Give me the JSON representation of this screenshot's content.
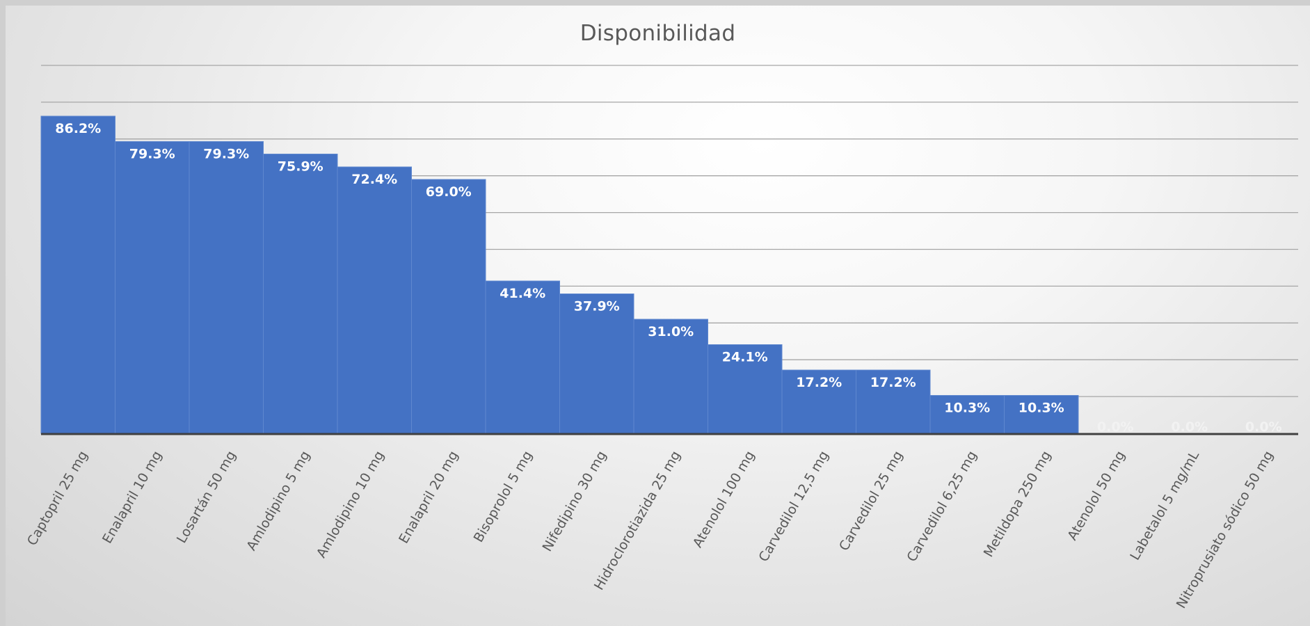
{
  "chart_data": {
    "type": "bar",
    "title": "Disponibilidad",
    "xlabel": "",
    "ylabel": "",
    "ylim": [
      0,
      100
    ],
    "grid": true,
    "value_format": "percent_1dp",
    "categories": [
      "Captopril 25 mg",
      "Enalapril 10 mg",
      "Losartán 50 mg",
      "Amlodipino 5 mg",
      "Amlodipino 10 mg",
      "Enalapril 20 mg",
      "Bisoprolol 5 mg",
      "Nifedipino 30 mg",
      "Hidroclorotiazida 25 mg",
      "Atenolol 100 mg",
      "Carvedilol 12,5 mg",
      "Carvedilol 25 mg",
      "Carvedilol 6,25 mg",
      "Metildopa 250 mg",
      "Atenolol 50 mg",
      "Labetalol 5 mg/mL",
      "Nitroprusiato sódico 50 mg"
    ],
    "values": [
      86.2,
      79.3,
      79.3,
      75.9,
      72.4,
      69.0,
      41.4,
      37.9,
      31.0,
      24.1,
      17.2,
      17.2,
      10.3,
      10.3,
      0.0,
      0.0,
      0.0
    ],
    "data_labels": [
      "86.2%",
      "79.3%",
      "79.3%",
      "75.9%",
      "72.4%",
      "69.0%",
      "41.4%",
      "37.9%",
      "31.0%",
      "24.1%",
      "17.2%",
      "17.2%",
      "10.3%",
      "10.3%",
      "0.0%",
      "0.0%",
      "0.0%"
    ],
    "colors": {
      "bar": "#4472c4",
      "gridline": "#a6a6a6",
      "axis": "#404040",
      "label_text": "#595959"
    }
  }
}
